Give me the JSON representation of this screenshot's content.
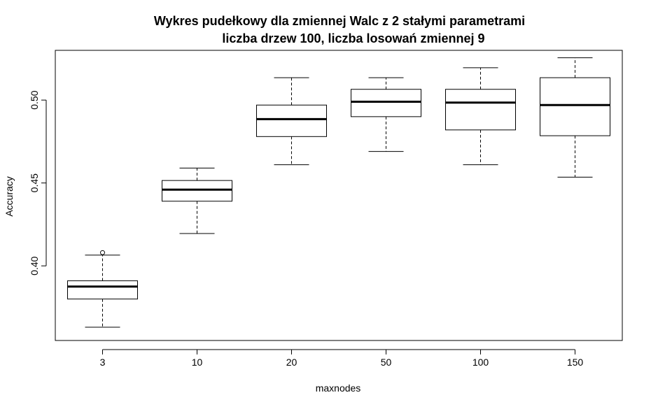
{
  "chart_data": {
    "type": "boxplot",
    "title": "Wykres pudełkowy dla zmiennej Walc z 2 stałymi parametrami",
    "subtitle": "liczba drzew 100, liczba losowań zmiennej 9",
    "xlabel": "maxnodes",
    "ylabel": "Accuracy",
    "categories": [
      "3",
      "10",
      "20",
      "50",
      "100",
      "150"
    ],
    "y_ticks": [
      0.4,
      0.45,
      0.5
    ],
    "y_tick_labels": [
      "0.40",
      "0.45",
      "0.50"
    ],
    "ylim": [
      0.355,
      0.53
    ],
    "grid": false,
    "legend": "none",
    "boxes": [
      {
        "category": "3",
        "whisker_low": 0.363,
        "q1": 0.38,
        "median": 0.3875,
        "q3": 0.391,
        "whisker_high": 0.4065,
        "outliers": [
          0.408
        ]
      },
      {
        "category": "10",
        "whisker_low": 0.4195,
        "q1": 0.439,
        "median": 0.446,
        "q3": 0.4515,
        "whisker_high": 0.459,
        "outliers": []
      },
      {
        "category": "20",
        "whisker_low": 0.461,
        "q1": 0.478,
        "median": 0.4885,
        "q3": 0.497,
        "whisker_high": 0.5135,
        "outliers": []
      },
      {
        "category": "50",
        "whisker_low": 0.469,
        "q1": 0.49,
        "median": 0.499,
        "q3": 0.5065,
        "whisker_high": 0.5135,
        "outliers": []
      },
      {
        "category": "100",
        "whisker_low": 0.461,
        "q1": 0.482,
        "median": 0.4985,
        "q3": 0.5065,
        "whisker_high": 0.5195,
        "outliers": []
      },
      {
        "category": "150",
        "whisker_low": 0.4535,
        "q1": 0.4785,
        "median": 0.497,
        "q3": 0.5135,
        "whisker_high": 0.5255,
        "outliers": []
      }
    ]
  }
}
